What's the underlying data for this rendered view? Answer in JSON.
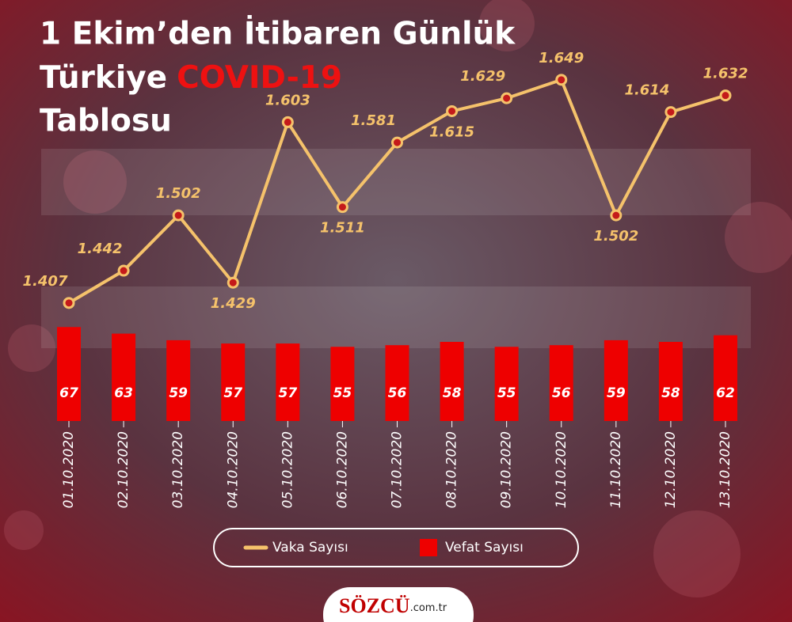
{
  "chart_data": {
    "type": "combo",
    "title_parts": [
      "1 Ekim’den İtibaren Günlük",
      "Türkiye",
      "COVID-19",
      "Tablosu"
    ],
    "categories": [
      "01.10.2020",
      "02.10.2020",
      "03.10.2020",
      "04.10.2020",
      "05.10.2020",
      "06.10.2020",
      "07.10.2020",
      "08.10.2020",
      "09.10.2020",
      "10.10.2020",
      "11.10.2020",
      "12.10.2020",
      "13.10.2020"
    ],
    "series": [
      {
        "name": "Vaka Sayısı",
        "kind": "line",
        "color": "#f5c26b",
        "axis": "y",
        "values": [
          1407,
          1442,
          1502,
          1429,
          1603,
          1511,
          1581,
          1615,
          1629,
          1649,
          1502,
          1614,
          1632
        ],
        "value_labels": [
          "1.407",
          "1.442",
          "1.502",
          "1.429",
          "1.603",
          "1.511",
          "1.581",
          "1.615",
          "1.629",
          "1.649",
          "1.502",
          "1.614",
          "1.632"
        ]
      },
      {
        "name": "Vefat Sayısı",
        "kind": "bar",
        "color": "#ee0000",
        "axis": "y2",
        "values": [
          67,
          63,
          59,
          57,
          57,
          55,
          56,
          58,
          55,
          56,
          59,
          58,
          62
        ]
      }
    ],
    "ylim": [
      1400,
      1660
    ],
    "y2lim": [
      10,
      70
    ]
  },
  "footer": {
    "brand": "SÖZCÜ",
    "domain": ".com.tr"
  }
}
